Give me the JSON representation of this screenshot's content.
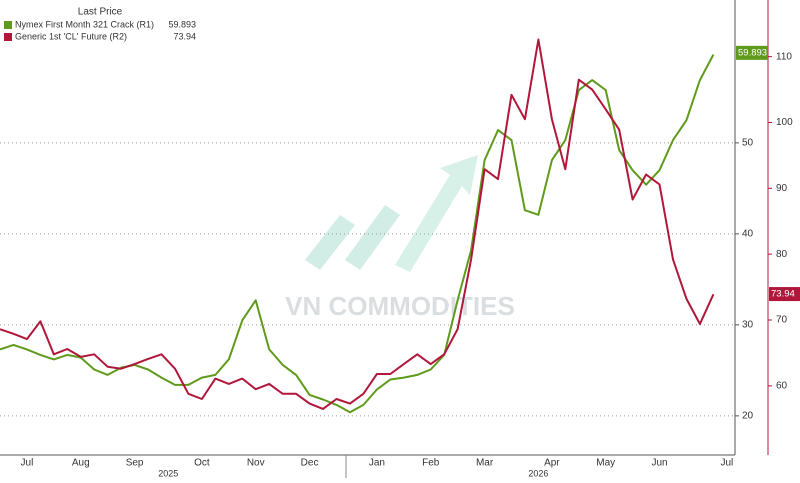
{
  "chart_data": {
    "type": "line",
    "legend_title": "Last Price",
    "legend": "upper left",
    "grid": true,
    "watermark": "VN COMMODITIES",
    "categories": [
      null,
      null,
      "Jul",
      null,
      null,
      null,
      "Aug",
      null,
      null,
      null,
      "Sep",
      null,
      null,
      null,
      null,
      "Oct",
      null,
      null,
      null,
      "Nov",
      null,
      null,
      null,
      "Dec",
      null,
      null,
      null,
      null,
      "Jan",
      null,
      null,
      null,
      "Feb",
      null,
      null,
      null,
      "Mar",
      null,
      null,
      null,
      null,
      "Apr",
      null,
      null,
      null,
      "May",
      null,
      null,
      null,
      "Jun",
      null,
      null,
      null,
      null,
      "Jul"
    ],
    "years": [
      "2025",
      "2026"
    ],
    "ylim": [
      15.7,
      65.7
    ],
    "yticks": [
      20,
      30,
      40,
      50
    ],
    "y2lim": [
      49.5,
      118.6
    ],
    "y2ticks": [
      60,
      70,
      80,
      90,
      100,
      110
    ],
    "series": [
      {
        "name": "Nymex First Month 321 Crack  (R1)",
        "color": "#5f9a1c",
        "last_value": 59.893,
        "values": [
          27.3,
          27.8,
          27.3,
          26.7,
          26.2,
          26.7,
          26.4,
          25.1,
          24.5,
          25.3,
          25.6,
          25.1,
          24.2,
          23.4,
          23.4,
          24.2,
          24.5,
          26.2,
          30.5,
          32.7,
          27.3,
          25.6,
          24.5,
          22.3,
          21.8,
          21.2,
          20.4,
          21.2,
          22.9,
          24.0,
          24.2,
          24.5,
          25.1,
          26.7,
          32.7,
          38.2,
          48.1,
          51.4,
          50.3,
          42.6,
          42.1,
          48.1,
          50.3,
          55.8,
          56.9,
          55.8,
          49.2,
          47.0,
          45.4,
          47.0,
          50.3,
          52.5,
          56.9,
          59.7,
          null
        ]
      },
      {
        "name": "Generic 1st 'CL' Future  (R2)",
        "color": "#b0173a",
        "axis": "y2",
        "last_value": 73.94,
        "values": [
          68.6,
          67.9,
          67.1,
          69.8,
          64.8,
          65.6,
          64.4,
          64.8,
          62.9,
          62.6,
          63.3,
          64.1,
          64.8,
          62.6,
          58.8,
          58.0,
          61.1,
          60.3,
          61.1,
          59.5,
          60.3,
          58.8,
          58.8,
          57.3,
          56.5,
          58.0,
          57.3,
          58.8,
          61.8,
          61.8,
          63.3,
          64.8,
          63.3,
          64.8,
          68.6,
          79.2,
          92.9,
          91.4,
          104.2,
          100.5,
          112.6,
          100.5,
          92.9,
          106.5,
          105.0,
          102.0,
          98.9,
          88.3,
          92.1,
          90.6,
          79.2,
          73.2,
          69.4,
          73.9,
          null
        ]
      }
    ]
  }
}
